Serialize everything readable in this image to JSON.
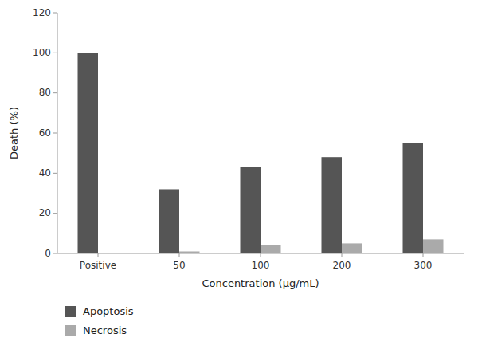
{
  "chart_data": {
    "type": "bar",
    "xlabel": "Concentration (μg/mL)",
    "ylabel": "Death (%)",
    "categories": [
      "Positive",
      "50",
      "100",
      "200",
      "300"
    ],
    "series": [
      {
        "name": "Apoptosis",
        "color": "#555555",
        "values": [
          100,
          32,
          43,
          48,
          55
        ]
      },
      {
        "name": "Necrosis",
        "color": "#aaaaaa",
        "values": [
          0,
          1,
          4,
          5,
          7
        ]
      }
    ],
    "ylim": [
      0,
      120
    ],
    "yticks": [
      0,
      20,
      40,
      60,
      80,
      100,
      120
    ],
    "grid": false,
    "legend": "lower left"
  }
}
